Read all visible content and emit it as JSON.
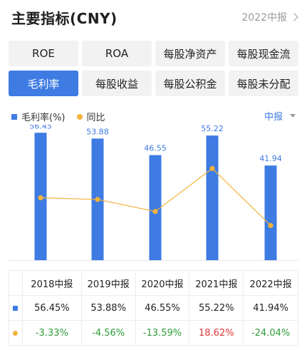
{
  "header": {
    "title": "主要指标(CNY)",
    "period": "2022中报"
  },
  "tabs": [
    {
      "label": "ROE",
      "active": false
    },
    {
      "label": "ROA",
      "active": false
    },
    {
      "label": "每股净资产",
      "active": false
    },
    {
      "label": "每股现金流",
      "active": false
    },
    {
      "label": "毛利率",
      "active": true
    },
    {
      "label": "每股收益",
      "active": false
    },
    {
      "label": "每股公积金",
      "active": false
    },
    {
      "label": "每股未分配",
      "active": false
    }
  ],
  "legend": {
    "bar_label": "毛利率(%)",
    "line_label": "同比"
  },
  "report_type": "中报",
  "colors": {
    "accent": "#3e7be3",
    "line": "#f2b33d",
    "positive": "#e2383c",
    "negative": "#2f9d3a"
  },
  "chart_data": {
    "type": "bar",
    "categories": [
      "2018中报",
      "2019中报",
      "2020中报",
      "2021中报",
      "2022中报"
    ],
    "series": [
      {
        "name": "毛利率(%)",
        "type": "bar",
        "values": [
          56.45,
          53.88,
          46.55,
          55.22,
          41.94
        ]
      },
      {
        "name": "同比",
        "type": "line",
        "values": [
          -3.33,
          -4.56,
          -13.59,
          18.62,
          -24.04
        ]
      }
    ],
    "bar_ylim": [
      0,
      60
    ],
    "line_ylim": [
      -50,
      30
    ],
    "grid": false,
    "legend_position": "top-left"
  },
  "table": {
    "headers": [
      "2018中报",
      "2019中报",
      "2020中报",
      "2021中报",
      "2022中报"
    ],
    "rows": [
      {
        "marker": "bar",
        "values": [
          "56.45%",
          "53.88%",
          "46.55%",
          "55.22%",
          "41.94%"
        ]
      },
      {
        "marker": "line",
        "values": [
          "-3.33%",
          "-4.56%",
          "-13.59%",
          "18.62%",
          "-24.04%"
        ]
      }
    ]
  }
}
